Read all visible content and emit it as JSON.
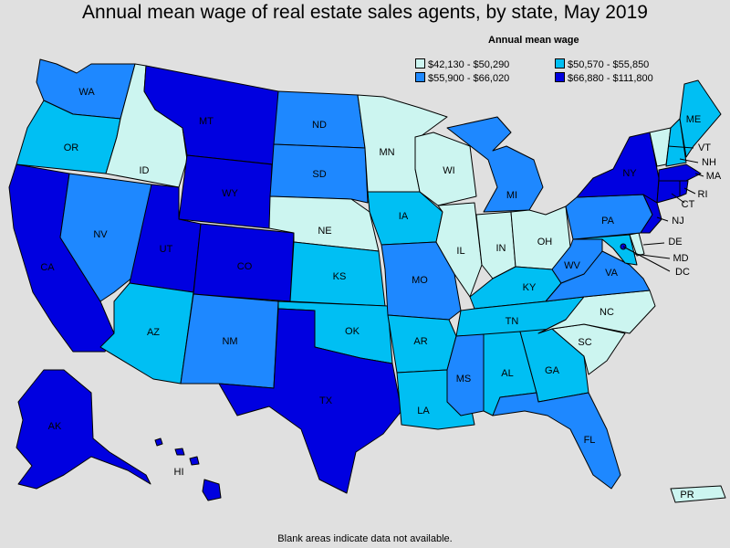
{
  "title": "Annual mean wage of real estate sales agents, by state, May 2019",
  "legend": {
    "title": "Annual mean wage",
    "items": [
      {
        "label": "$42,130 - $50,290",
        "color": "#ccf5f0"
      },
      {
        "label": "$50,570 - $55,850",
        "color": "#00bff3"
      },
      {
        "label": "$55,900 - $66,020",
        "color": "#1e88ff"
      },
      {
        "label": "$66,880 - $111,800",
        "color": "#0000e0"
      }
    ]
  },
  "footnote": "Blank areas indicate data not available.",
  "states": {
    "WA": {
      "label": "WA",
      "tier": 2
    },
    "OR": {
      "label": "OR",
      "tier": 1
    },
    "CA": {
      "label": "CA",
      "tier": 3
    },
    "ID": {
      "label": "ID",
      "tier": 0
    },
    "NV": {
      "label": "NV",
      "tier": 2
    },
    "MT": {
      "label": "MT",
      "tier": 3
    },
    "WY": {
      "label": "WY",
      "tier": 3
    },
    "UT": {
      "label": "UT",
      "tier": 3
    },
    "AZ": {
      "label": "AZ",
      "tier": 1
    },
    "CO": {
      "label": "CO",
      "tier": 3
    },
    "NM": {
      "label": "NM",
      "tier": 2
    },
    "ND": {
      "label": "ND",
      "tier": 2
    },
    "SD": {
      "label": "SD",
      "tier": 2
    },
    "NE": {
      "label": "NE",
      "tier": 0
    },
    "KS": {
      "label": "KS",
      "tier": 1
    },
    "OK": {
      "label": "OK",
      "tier": 1
    },
    "TX": {
      "label": "TX",
      "tier": 3
    },
    "MN": {
      "label": "MN",
      "tier": 0
    },
    "IA": {
      "label": "IA",
      "tier": 1
    },
    "MO": {
      "label": "MO",
      "tier": 2
    },
    "AR": {
      "label": "AR",
      "tier": 1
    },
    "LA": {
      "label": "LA",
      "tier": 1
    },
    "WI": {
      "label": "WI",
      "tier": 0
    },
    "IL": {
      "label": "IL",
      "tier": 0
    },
    "MI": {
      "label": "MI",
      "tier": 2
    },
    "IN": {
      "label": "IN",
      "tier": 0
    },
    "OH": {
      "label": "OH",
      "tier": 0
    },
    "KY": {
      "label": "KY",
      "tier": 1
    },
    "TN": {
      "label": "TN",
      "tier": 1
    },
    "MS": {
      "label": "MS",
      "tier": 2
    },
    "AL": {
      "label": "AL",
      "tier": 1
    },
    "GA": {
      "label": "GA",
      "tier": 1
    },
    "FL": {
      "label": "FL",
      "tier": 2
    },
    "SC": {
      "label": "SC",
      "tier": 0
    },
    "NC": {
      "label": "NC",
      "tier": 0
    },
    "VA": {
      "label": "VA",
      "tier": 2
    },
    "WV": {
      "label": "WV",
      "tier": 2
    },
    "PA": {
      "label": "PA",
      "tier": 2
    },
    "NY": {
      "label": "NY",
      "tier": 3
    },
    "VT": {
      "label": "VT",
      "tier": 0
    },
    "NH": {
      "label": "NH",
      "tier": 1
    },
    "ME": {
      "label": "ME",
      "tier": 1
    },
    "MA": {
      "label": "MA",
      "tier": 3
    },
    "RI": {
      "label": "RI",
      "tier": 3
    },
    "CT": {
      "label": "CT",
      "tier": 3
    },
    "NJ": {
      "label": "NJ",
      "tier": 3
    },
    "DE": {
      "label": "DE",
      "tier": 0
    },
    "MD": {
      "label": "MD",
      "tier": 1
    },
    "DC": {
      "label": "DC",
      "tier": 3
    },
    "AK": {
      "label": "AK",
      "tier": 3
    },
    "HI": {
      "label": "HI",
      "tier": 3
    },
    "PR": {
      "label": "PR",
      "tier": 0
    }
  }
}
